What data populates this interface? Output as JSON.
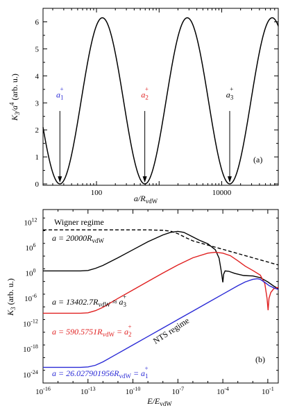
{
  "chart_data": [
    {
      "type": "line",
      "panel_label": "(a)",
      "xlabel_main": "a/R",
      "xlabel_sub": "vdW",
      "ylabel": "K₃/a⁴ (arb. u.)",
      "ylabel_main1": "K",
      "ylabel_sub1": "3",
      "ylabel_mid": "/a",
      "ylabel_sup": "4",
      "ylabel_tail": " (arb. u.)",
      "x_scale": "log",
      "xlim": [
        14,
        80000
      ],
      "ylim": [
        -0.05,
        6.5
      ],
      "xticks": [
        {
          "value": 100,
          "label": "100"
        },
        {
          "value": 10000,
          "label": "10000"
        }
      ],
      "yticks": [
        {
          "value": 0,
          "label": "0"
        },
        {
          "value": 1,
          "label": "1"
        },
        {
          "value": 2,
          "label": "2"
        },
        {
          "value": 3,
          "label": "3"
        },
        {
          "value": 4,
          "label": "4"
        },
        {
          "value": 5,
          "label": "5"
        },
        {
          "value": 6,
          "label": "6"
        }
      ],
      "series": [
        {
          "color": "#000000",
          "model": "log-periodic",
          "amplitude": 6.15,
          "period_factor": 22.7,
          "minima_at": [
            26.03,
            590.6,
            13402.7
          ]
        }
      ],
      "annotations": [
        {
          "text": "a",
          "sub": "1",
          "sup": "+",
          "color": "#2a2ad6",
          "x": 26.03
        },
        {
          "text": "a",
          "sub": "2",
          "sup": "+",
          "color": "#e02020",
          "x": 590.6
        },
        {
          "text": "a",
          "sub": "3",
          "sup": "+",
          "color": "#000000",
          "x": 13402.7
        }
      ]
    },
    {
      "type": "line",
      "panel_label": "(b)",
      "xlabel_main": "E/E",
      "xlabel_sub": "vdW",
      "ylabel_main1": "K",
      "ylabel_sub1": "3",
      "ylabel_tail": " (arb. u.)",
      "x_scale": "log",
      "y_scale": "log",
      "xlim_exp": [
        -16,
        -0.3
      ],
      "ylim_exp": [
        -26,
        15
      ],
      "xticks": [
        {
          "exp": -16,
          "label": "10",
          "sup": "-16"
        },
        {
          "exp": -13,
          "label": "10",
          "sup": "-13"
        },
        {
          "exp": -10,
          "label": "10",
          "sup": "-10"
        },
        {
          "exp": -7,
          "label": "10",
          "sup": "-7"
        },
        {
          "exp": -4,
          "label": "10",
          "sup": "-4"
        },
        {
          "exp": -1,
          "label": "10",
          "sup": "-1"
        }
      ],
      "yticks": [
        {
          "exp": 12,
          "label": "10",
          "sup": "12"
        },
        {
          "exp": 6,
          "label": "10",
          "sup": "6"
        },
        {
          "exp": 0,
          "label": "10",
          "sup": "0"
        },
        {
          "exp": -6,
          "label": "10",
          "sup": "-6"
        },
        {
          "exp": -12,
          "label": "10",
          "sup": "-12"
        },
        {
          "exp": -18,
          "label": "10",
          "sup": "-18"
        },
        {
          "exp": -24,
          "label": "10",
          "sup": "-24"
        }
      ],
      "series": [
        {
          "color": "#000000",
          "dash": true,
          "points": [
            [
              -16,
              10.2
            ],
            [
              -12,
              10.2
            ],
            [
              -9,
              10.2
            ],
            [
              -8,
              10.1
            ],
            [
              -7.5,
              9.9
            ],
            [
              -7,
              9.3
            ],
            [
              -6.5,
              8.4
            ],
            [
              -6,
              7.6
            ],
            [
              -5,
              6.6
            ],
            [
              -4,
              5.6
            ],
            [
              -3,
              4.6
            ],
            [
              -2,
              3.6
            ],
            [
              -1,
              2.6
            ],
            [
              -0.3,
              1.9
            ]
          ]
        },
        {
          "color": "#000000",
          "points": [
            [
              -16,
              0.5
            ],
            [
              -13.5,
              0.5
            ],
            [
              -13,
              0.6
            ],
            [
              -12.5,
              1.1
            ],
            [
              -12,
              1.8
            ],
            [
              -11,
              3.6
            ],
            [
              -10,
              5.5
            ],
            [
              -9,
              7.4
            ],
            [
              -8,
              9.0
            ],
            [
              -7.5,
              9.6
            ],
            [
              -7,
              9.85
            ],
            [
              -6.6,
              9.6
            ],
            [
              -6.2,
              8.9
            ],
            [
              -5.6,
              7.8
            ],
            [
              -5,
              6.9
            ],
            [
              -4.5,
              5.5
            ],
            [
              -4.25,
              3.5
            ],
            [
              -4.1,
              0.3
            ],
            [
              -4.0,
              -2.2
            ],
            [
              -3.95,
              -0.3
            ],
            [
              -3.85,
              0.5
            ],
            [
              -3.6,
              0.4
            ],
            [
              -3.2,
              -0.1
            ],
            [
              -2.6,
              -0.6
            ],
            [
              -2,
              -0.7
            ],
            [
              -1.5,
              -1.1
            ],
            [
              -1,
              -2.1
            ],
            [
              -0.6,
              -3.1
            ],
            [
              -0.3,
              -3.7
            ]
          ]
        },
        {
          "color": "#e02020",
          "points": [
            [
              -16,
              -9.5
            ],
            [
              -13.5,
              -9.5
            ],
            [
              -13,
              -9.4
            ],
            [
              -12.5,
              -8.9
            ],
            [
              -12,
              -8.1
            ],
            [
              -11,
              -6.0
            ],
            [
              -10,
              -4.0
            ],
            [
              -9,
              -2.0
            ],
            [
              -8,
              0.0
            ],
            [
              -7,
              1.9
            ],
            [
              -6,
              3.6
            ],
            [
              -5,
              4.7
            ],
            [
              -4.5,
              4.9
            ],
            [
              -4,
              4.7
            ],
            [
              -3.5,
              4.1
            ],
            [
              -3,
              2.9
            ],
            [
              -2.5,
              1.6
            ],
            [
              -2,
              0.6
            ],
            [
              -1.5,
              -0.5
            ],
            [
              -1.2,
              -2.5
            ],
            [
              -1.05,
              -6.0
            ],
            [
              -0.98,
              -8.8
            ],
            [
              -0.92,
              -6.0
            ],
            [
              -0.8,
              -4.6
            ],
            [
              -0.6,
              -3.7
            ],
            [
              -0.3,
              -3.4
            ]
          ]
        },
        {
          "color": "#2a2ad6",
          "points": [
            [
              -16,
              -22.3
            ],
            [
              -13.5,
              -22.3
            ],
            [
              -13,
              -22.2
            ],
            [
              -12.5,
              -21.8
            ],
            [
              -12,
              -21.0
            ],
            [
              -11,
              -19.0
            ],
            [
              -10,
              -17.0
            ],
            [
              -9,
              -15.0
            ],
            [
              -8,
              -13.0
            ],
            [
              -7,
              -11.0
            ],
            [
              -6,
              -9.0
            ],
            [
              -5,
              -7.0
            ],
            [
              -4,
              -5.0
            ],
            [
              -3,
              -3.0
            ],
            [
              -2.5,
              -2.1
            ],
            [
              -2,
              -1.5
            ],
            [
              -1.7,
              -1.35
            ],
            [
              -1.5,
              -1.5
            ],
            [
              -1.2,
              -2.2
            ],
            [
              -0.9,
              -3.0
            ],
            [
              -0.6,
              -3.5
            ],
            [
              -0.3,
              -3.9
            ]
          ]
        }
      ],
      "annotations": [
        {
          "text": "Wigner regime",
          "color": "#000000",
          "kind": "plain"
        },
        {
          "text": "a = 20000R",
          "sub": "vdW",
          "color": "#000000",
          "kind": "italic"
        },
        {
          "text": "a = 13402.7R",
          "sub": "vdW",
          "tail": " ≈ a",
          "tail_sub": "3",
          "tail_sup": "+",
          "color": "#000000",
          "kind": "italic"
        },
        {
          "text": "NTS regime",
          "color": "#000000",
          "kind": "rotated"
        },
        {
          "text": "a = 590.5751R",
          "sub": "vdW",
          "tail": " = a",
          "tail_sub": "2",
          "tail_sup": "+",
          "color": "#e02020",
          "kind": "italic"
        },
        {
          "text": "a = 26.027901956R",
          "sub": "vdW",
          "tail": " = a",
          "tail_sub": "1",
          "tail_sup": "+",
          "color": "#2a2ad6",
          "kind": "italic"
        }
      ]
    }
  ]
}
